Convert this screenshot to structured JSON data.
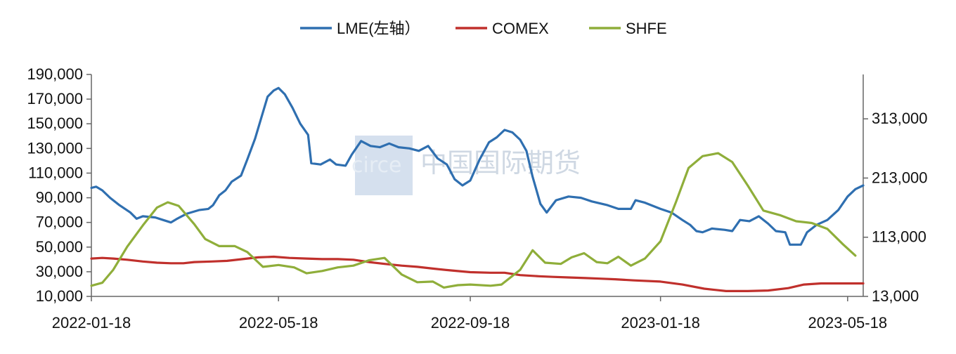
{
  "watermark": {
    "text": "中国国际期货",
    "logo_text": "circe",
    "color": "#c7d6e8"
  },
  "chart_data": {
    "type": "line",
    "title": "",
    "xlabel": "",
    "ylabel": "",
    "legend_position": "top-center",
    "grid": false,
    "x_tick_labels": [
      "2022-01-18",
      "2022-05-18",
      "2022-09-18",
      "2023-01-18",
      "2023-05-18"
    ],
    "x_range": [
      "2022-01-18",
      "2023-05-28"
    ],
    "y_left": {
      "range": [
        10000,
        190000
      ],
      "ticks": [
        "190,000",
        "170,000",
        "150,000",
        "130,000",
        "110,000",
        "90,000",
        "70,000",
        "50,000",
        "30,000",
        "10,000"
      ],
      "tick_values": [
        190000,
        170000,
        150000,
        130000,
        110000,
        90000,
        70000,
        50000,
        30000,
        10000
      ]
    },
    "y_right": {
      "range": [
        13000,
        388000
      ],
      "ticks": [
        "313,000",
        "213,000",
        "113,000",
        "13,000"
      ],
      "tick_values": [
        313000,
        213000,
        113000,
        13000
      ]
    },
    "series": [
      {
        "name": "LME(左轴）",
        "axis": "left",
        "color": "#2f6fb0",
        "points": [
          [
            "2022-01-18",
            98000
          ],
          [
            "2022-01-21",
            99000
          ],
          [
            "2022-01-25",
            96000
          ],
          [
            "2022-01-30",
            90000
          ],
          [
            "2022-02-05",
            84000
          ],
          [
            "2022-02-12",
            78000
          ],
          [
            "2022-02-16",
            73000
          ],
          [
            "2022-02-20",
            75000
          ],
          [
            "2022-02-28",
            74000
          ],
          [
            "2022-03-05",
            72000
          ],
          [
            "2022-03-10",
            70000
          ],
          [
            "2022-03-14",
            73000
          ],
          [
            "2022-03-20",
            77000
          ],
          [
            "2022-03-28",
            80000
          ],
          [
            "2022-04-03",
            81000
          ],
          [
            "2022-04-06",
            84000
          ],
          [
            "2022-04-10",
            92000
          ],
          [
            "2022-04-14",
            96000
          ],
          [
            "2022-04-18",
            103000
          ],
          [
            "2022-04-24",
            108000
          ],
          [
            "2022-04-28",
            121000
          ],
          [
            "2022-05-03",
            138000
          ],
          [
            "2022-05-07",
            155000
          ],
          [
            "2022-05-11",
            172000
          ],
          [
            "2022-05-15",
            177000
          ],
          [
            "2022-05-18",
            179000
          ],
          [
            "2022-05-22",
            174000
          ],
          [
            "2022-05-27",
            163000
          ],
          [
            "2022-06-01",
            150000
          ],
          [
            "2022-06-06",
            141000
          ],
          [
            "2022-06-08",
            118000
          ],
          [
            "2022-06-14",
            117000
          ],
          [
            "2022-06-20",
            121000
          ],
          [
            "2022-06-24",
            117000
          ],
          [
            "2022-06-30",
            116000
          ],
          [
            "2022-07-04",
            125000
          ],
          [
            "2022-07-10",
            136000
          ],
          [
            "2022-07-16",
            132000
          ],
          [
            "2022-07-22",
            131000
          ],
          [
            "2022-07-28",
            134000
          ],
          [
            "2022-08-03",
            131000
          ],
          [
            "2022-08-10",
            130000
          ],
          [
            "2022-08-16",
            128000
          ],
          [
            "2022-08-22",
            132000
          ],
          [
            "2022-08-28",
            122000
          ],
          [
            "2022-09-03",
            117000
          ],
          [
            "2022-09-08",
            105000
          ],
          [
            "2022-09-13",
            100000
          ],
          [
            "2022-09-18",
            104000
          ],
          [
            "2022-09-24",
            121000
          ],
          [
            "2022-09-30",
            135000
          ],
          [
            "2022-10-05",
            139000
          ],
          [
            "2022-10-10",
            145000
          ],
          [
            "2022-10-15",
            143000
          ],
          [
            "2022-10-20",
            137000
          ],
          [
            "2022-10-24",
            128000
          ],
          [
            "2022-10-28",
            107000
          ],
          [
            "2022-11-02",
            85000
          ],
          [
            "2022-11-06",
            78000
          ],
          [
            "2022-11-12",
            88000
          ],
          [
            "2022-11-20",
            91000
          ],
          [
            "2022-11-28",
            90000
          ],
          [
            "2022-12-05",
            87000
          ],
          [
            "2022-12-15",
            84000
          ],
          [
            "2022-12-22",
            81000
          ],
          [
            "2022-12-30",
            81000
          ],
          [
            "2023-01-02",
            88000
          ],
          [
            "2023-01-08",
            86000
          ],
          [
            "2023-01-18",
            81000
          ],
          [
            "2023-01-25",
            78000
          ],
          [
            "2023-02-01",
            72000
          ],
          [
            "2023-02-06",
            68000
          ],
          [
            "2023-02-10",
            63000
          ],
          [
            "2023-02-14",
            62000
          ],
          [
            "2023-02-20",
            65000
          ],
          [
            "2023-02-28",
            64000
          ],
          [
            "2023-03-05",
            63000
          ],
          [
            "2023-03-10",
            72000
          ],
          [
            "2023-03-16",
            71000
          ],
          [
            "2023-03-22",
            75000
          ],
          [
            "2023-03-28",
            69000
          ],
          [
            "2023-04-02",
            63000
          ],
          [
            "2023-04-08",
            62000
          ],
          [
            "2023-04-11",
            52000
          ],
          [
            "2023-04-18",
            52000
          ],
          [
            "2023-04-22",
            62000
          ],
          [
            "2023-04-28",
            68000
          ],
          [
            "2023-05-05",
            72000
          ],
          [
            "2023-05-12",
            80000
          ],
          [
            "2023-05-18",
            91000
          ],
          [
            "2023-05-23",
            97000
          ],
          [
            "2023-05-28",
            100000
          ]
        ]
      },
      {
        "name": "COMEX",
        "axis": "right",
        "color": "#c0302c",
        "points": [
          [
            "2022-01-18",
            77000
          ],
          [
            "2022-01-25",
            78000
          ],
          [
            "2022-02-01",
            77000
          ],
          [
            "2022-02-10",
            75000
          ],
          [
            "2022-02-20",
            72000
          ],
          [
            "2022-03-01",
            70000
          ],
          [
            "2022-03-10",
            69000
          ],
          [
            "2022-03-18",
            69000
          ],
          [
            "2022-03-25",
            71000
          ],
          [
            "2022-04-05",
            72000
          ],
          [
            "2022-04-15",
            73000
          ],
          [
            "2022-04-25",
            76000
          ],
          [
            "2022-05-05",
            79000
          ],
          [
            "2022-05-15",
            80000
          ],
          [
            "2022-05-25",
            78000
          ],
          [
            "2022-06-05",
            77000
          ],
          [
            "2022-06-15",
            76000
          ],
          [
            "2022-06-25",
            76000
          ],
          [
            "2022-07-05",
            75000
          ],
          [
            "2022-07-15",
            71000
          ],
          [
            "2022-07-25",
            68000
          ],
          [
            "2022-08-05",
            65000
          ],
          [
            "2022-08-15",
            63000
          ],
          [
            "2022-08-25",
            60000
          ],
          [
            "2022-09-05",
            57000
          ],
          [
            "2022-09-18",
            54000
          ],
          [
            "2022-10-01",
            53000
          ],
          [
            "2022-10-10",
            53000
          ],
          [
            "2022-10-20",
            49000
          ],
          [
            "2022-11-01",
            47000
          ],
          [
            "2022-11-10",
            46000
          ],
          [
            "2022-11-20",
            45000
          ],
          [
            "2022-12-01",
            44000
          ],
          [
            "2022-12-10",
            43000
          ],
          [
            "2022-12-20",
            42000
          ],
          [
            "2023-01-01",
            40000
          ],
          [
            "2023-01-18",
            38000
          ],
          [
            "2023-02-01",
            33000
          ],
          [
            "2023-02-15",
            26000
          ],
          [
            "2023-03-01",
            22000
          ],
          [
            "2023-03-15",
            22000
          ],
          [
            "2023-03-28",
            23000
          ],
          [
            "2023-04-10",
            27000
          ],
          [
            "2023-04-20",
            33000
          ],
          [
            "2023-05-01",
            35000
          ],
          [
            "2023-05-15",
            35000
          ],
          [
            "2023-05-28",
            35000
          ]
        ]
      },
      {
        "name": "SHFE",
        "axis": "right",
        "color": "#8fae3a",
        "points": [
          [
            "2022-01-18",
            31000
          ],
          [
            "2022-01-25",
            36000
          ],
          [
            "2022-02-01",
            58000
          ],
          [
            "2022-02-10",
            97000
          ],
          [
            "2022-02-20",
            133000
          ],
          [
            "2022-03-01",
            163000
          ],
          [
            "2022-03-08",
            172000
          ],
          [
            "2022-03-15",
            166000
          ],
          [
            "2022-03-25",
            135000
          ],
          [
            "2022-04-01",
            110000
          ],
          [
            "2022-04-10",
            98000
          ],
          [
            "2022-04-20",
            98000
          ],
          [
            "2022-04-28",
            88000
          ],
          [
            "2022-05-08",
            63000
          ],
          [
            "2022-05-18",
            66000
          ],
          [
            "2022-05-28",
            62000
          ],
          [
            "2022-06-05",
            52000
          ],
          [
            "2022-06-15",
            56000
          ],
          [
            "2022-06-25",
            62000
          ],
          [
            "2022-07-05",
            65000
          ],
          [
            "2022-07-15",
            74000
          ],
          [
            "2022-07-25",
            78000
          ],
          [
            "2022-08-05",
            50000
          ],
          [
            "2022-08-15",
            37000
          ],
          [
            "2022-08-25",
            38000
          ],
          [
            "2022-09-01",
            28000
          ],
          [
            "2022-09-10",
            32000
          ],
          [
            "2022-09-18",
            33000
          ],
          [
            "2022-10-01",
            31000
          ],
          [
            "2022-10-08",
            33000
          ],
          [
            "2022-10-20",
            58000
          ],
          [
            "2022-10-28",
            91000
          ],
          [
            "2022-11-05",
            70000
          ],
          [
            "2022-11-15",
            68000
          ],
          [
            "2022-11-22",
            79000
          ],
          [
            "2022-11-30",
            86000
          ],
          [
            "2022-12-08",
            71000
          ],
          [
            "2022-12-15",
            69000
          ],
          [
            "2022-12-22",
            80000
          ],
          [
            "2022-12-30",
            65000
          ],
          [
            "2023-01-08",
            77000
          ],
          [
            "2023-01-18",
            106000
          ],
          [
            "2023-01-28",
            173000
          ],
          [
            "2023-02-05",
            230000
          ],
          [
            "2023-02-14",
            250000
          ],
          [
            "2023-02-24",
            255000
          ],
          [
            "2023-03-05",
            240000
          ],
          [
            "2023-03-15",
            200000
          ],
          [
            "2023-03-25",
            158000
          ],
          [
            "2023-04-05",
            150000
          ],
          [
            "2023-04-15",
            140000
          ],
          [
            "2023-04-25",
            137000
          ],
          [
            "2023-05-05",
            127000
          ],
          [
            "2023-05-15",
            101000
          ],
          [
            "2023-05-23",
            82000
          ]
        ]
      }
    ]
  }
}
